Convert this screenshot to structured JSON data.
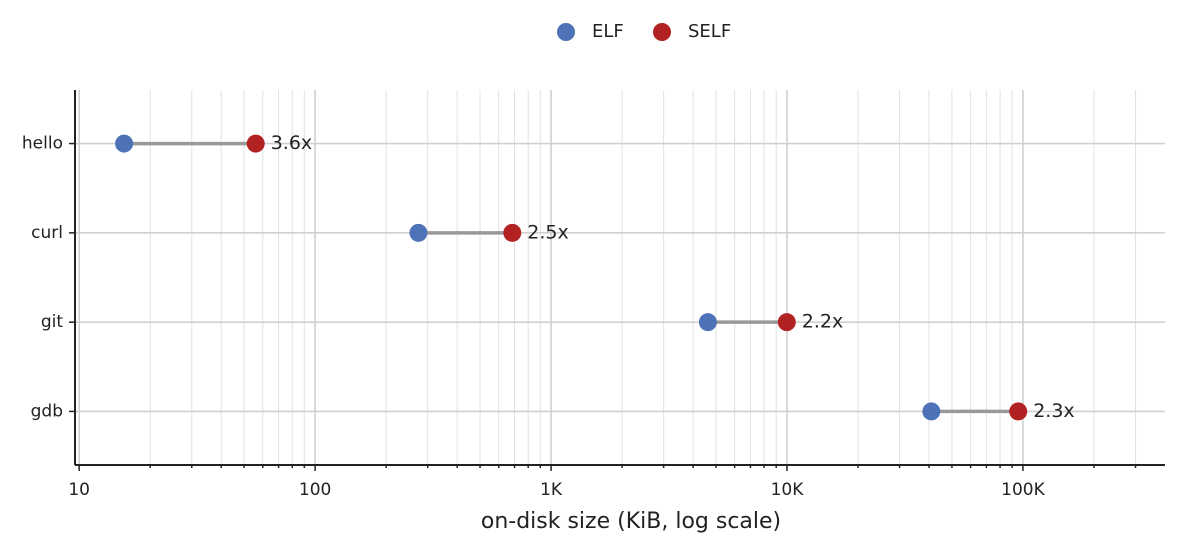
{
  "chart_data": {
    "type": "dumbbell",
    "categories": [
      "hello",
      "curl",
      "git",
      "gdb"
    ],
    "series": [
      {
        "name": "ELF",
        "color": "#4e72b8",
        "values": [
          15.5,
          274,
          4620,
          40900
        ]
      },
      {
        "name": "SELF",
        "color": "#b22222",
        "values": [
          56,
          685,
          9980,
          95500
        ]
      }
    ],
    "annotations": [
      "3.6x",
      "2.5x",
      "2.2x",
      "2.3x"
    ],
    "x_label": "on-disk size (KiB, log scale)",
    "xscale": "log",
    "xlim": [
      9.6,
      400000
    ],
    "xticks": [
      10,
      100,
      {
        "value": 1000,
        "label": "1K"
      },
      {
        "value": 10000,
        "label": "10K"
      },
      {
        "value": 100000,
        "label": "100K"
      }
    ],
    "xminor": [
      20,
      30,
      40,
      50,
      60,
      70,
      80,
      90,
      200,
      300,
      400,
      500,
      600,
      700,
      800,
      900,
      2000,
      3000,
      4000,
      5000,
      6000,
      7000,
      8000,
      9000,
      20000,
      30000,
      40000,
      50000,
      60000,
      70000,
      80000,
      90000,
      200000,
      300000
    ],
    "grid": true,
    "legend": "top",
    "connector_color": "#999999"
  }
}
